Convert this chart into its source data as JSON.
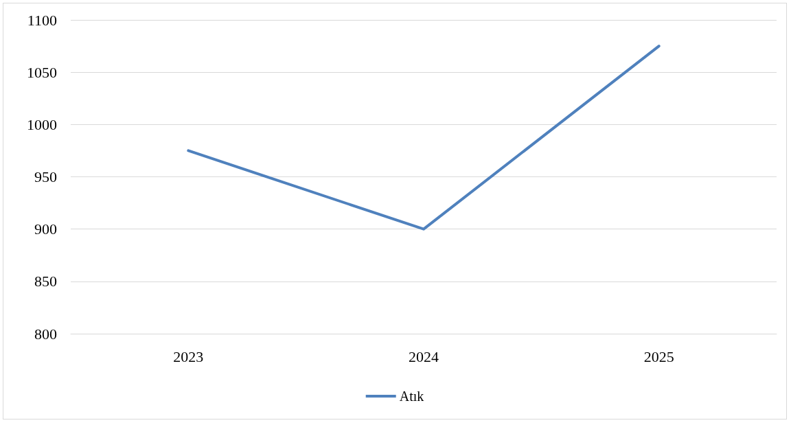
{
  "chart_data": {
    "type": "line",
    "categories": [
      "2023",
      "2024",
      "2025"
    ],
    "series": [
      {
        "name": "Atık",
        "color": "#4f81bd",
        "values": [
          975,
          900,
          1075
        ]
      }
    ],
    "ylim": [
      800,
      1100
    ],
    "yticks": [
      800,
      850,
      900,
      950,
      1000,
      1050,
      1100
    ],
    "grid": "y",
    "legend": "bottom",
    "marker": "none",
    "line_style": "solid"
  }
}
